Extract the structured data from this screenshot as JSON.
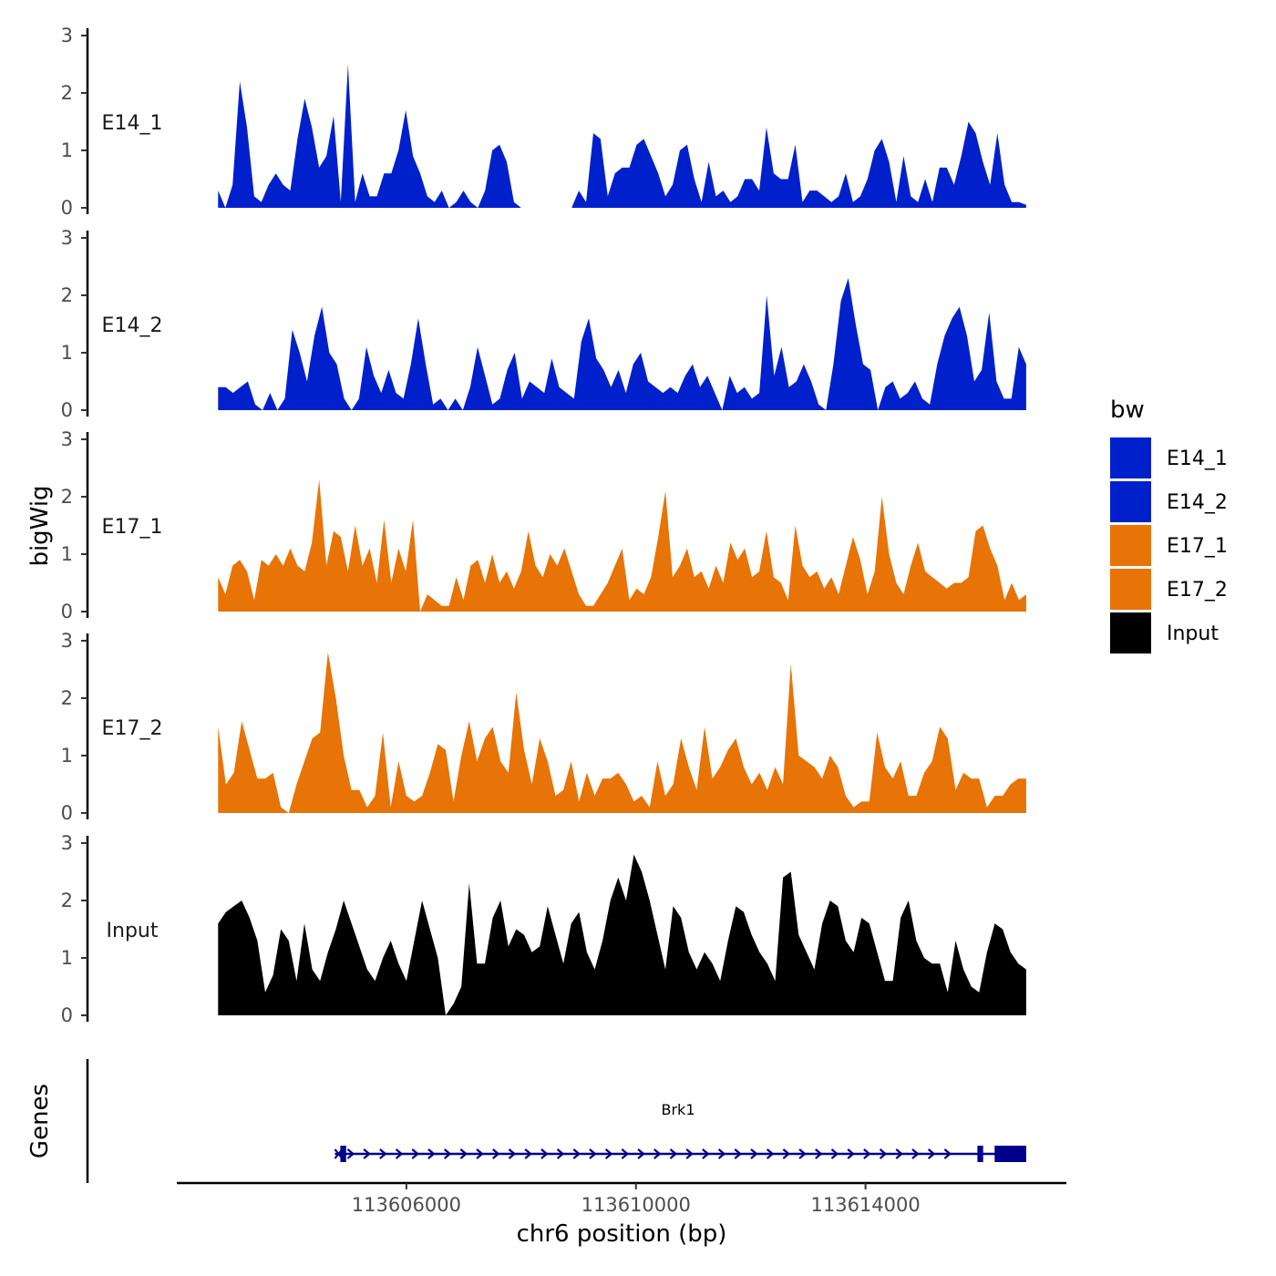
{
  "chart_data": {
    "type": "area",
    "y_axis_title": "bigWig",
    "genes_axis_title": "Genes",
    "x_axis_title": "chr6 position (bp)",
    "x_ticks": [
      "113606000",
      "113610000",
      "113614000"
    ],
    "x_tick_values": [
      113606000,
      113610000,
      113614000
    ],
    "xlim": [
      113602000,
      113617500
    ],
    "data_range": [
      113602720,
      113616800
    ],
    "ylim": [
      0,
      3
    ],
    "y_ticks": [
      "0",
      "1",
      "2",
      "3"
    ],
    "legend": {
      "title": "bw",
      "entries": [
        {
          "label": "E14_1",
          "color": "#0020CC"
        },
        {
          "label": "E14_2",
          "color": "#0020CC"
        },
        {
          "label": "E17_1",
          "color": "#E87306"
        },
        {
          "label": "E17_2",
          "color": "#E87306"
        },
        {
          "label": "Input",
          "color": "#000000"
        }
      ]
    },
    "series": [
      {
        "name": "E14_1",
        "color": "#0020CC",
        "values": [
          0.3,
          0,
          0.4,
          2.2,
          1.4,
          0.2,
          0.1,
          0.4,
          0.6,
          0.4,
          0.3,
          1.2,
          1.9,
          1.4,
          0.7,
          0.9,
          1.6,
          0.1,
          2.5,
          0.1,
          0.6,
          0.2,
          0.2,
          0.6,
          0.6,
          1.0,
          1.7,
          0.9,
          0.6,
          0.2,
          0.1,
          0.3,
          0,
          0.1,
          0.3,
          0.1,
          0,
          0.3,
          1.0,
          1.1,
          0.8,
          0.1,
          0,
          0,
          0,
          0,
          0,
          0,
          0,
          0,
          0.3,
          0.1,
          1.3,
          1.2,
          0.2,
          0.6,
          0.7,
          0.7,
          1.1,
          1.2,
          0.9,
          0.6,
          0.2,
          0.4,
          1.0,
          1.1,
          0.5,
          0.1,
          0.8,
          0.2,
          0.3,
          0.1,
          0.2,
          0.5,
          0.5,
          0.3,
          1.4,
          0.6,
          0.5,
          0.5,
          1.1,
          0.1,
          0.3,
          0.3,
          0.2,
          0.1,
          0.2,
          0.6,
          0.1,
          0.2,
          0.5,
          1.0,
          1.2,
          0.8,
          0.1,
          0.9,
          0.2,
          0.1,
          0.5,
          0.1,
          0.7,
          0.7,
          0.4,
          0.9,
          1.5,
          1.3,
          0.8,
          0.4,
          1.3,
          0.4,
          0.1,
          0.1,
          0.05
        ]
      },
      {
        "name": "E14_2",
        "color": "#0020CC",
        "values": [
          0.4,
          0.4,
          0.3,
          0.4,
          0.5,
          0.1,
          0,
          0.3,
          0,
          0.2,
          1.4,
          1.0,
          0.5,
          1.3,
          1.8,
          1.0,
          0.8,
          0.2,
          0,
          0.2,
          1.1,
          0.6,
          0.3,
          0.7,
          0.3,
          0.2,
          0.8,
          1.6,
          0.8,
          0.1,
          0.2,
          0,
          0.2,
          0,
          0.4,
          1.1,
          0.6,
          0.1,
          0.2,
          0.7,
          1.0,
          0.2,
          0.5,
          0.4,
          0.3,
          0.9,
          0.4,
          0.3,
          0.2,
          1.2,
          1.6,
          0.9,
          0.7,
          0.4,
          0.7,
          0.3,
          0.8,
          1.0,
          0.5,
          0.4,
          0.3,
          0.4,
          0.3,
          0.6,
          0.8,
          0.4,
          0.6,
          0.3,
          0,
          0.6,
          0.3,
          0.4,
          0.2,
          0.3,
          2.0,
          0.6,
          1.1,
          0.4,
          0.5,
          0.8,
          0.5,
          0.1,
          0,
          0.8,
          1.9,
          2.3,
          1.5,
          0.8,
          0.7,
          0,
          0.4,
          0.5,
          0.2,
          0.3,
          0.5,
          0.2,
          0.1,
          0.8,
          1.3,
          1.6,
          1.8,
          1.3,
          0.5,
          0.7,
          1.7,
          0.5,
          0.2,
          0.2,
          1.1,
          0.8
        ]
      },
      {
        "name": "E17_1",
        "color": "#E87306",
        "values": [
          0.6,
          0.3,
          0.8,
          0.9,
          0.7,
          0.2,
          0.9,
          0.8,
          1.0,
          0.8,
          1.1,
          0.8,
          0.7,
          1.2,
          2.3,
          0.8,
          1.4,
          1.3,
          0.7,
          1.5,
          0.8,
          1.1,
          0.5,
          1.6,
          0.5,
          1.1,
          0.7,
          1.6,
          0,
          0.3,
          0.2,
          0.1,
          0.1,
          0.6,
          0.2,
          0.8,
          0.9,
          0.5,
          1.0,
          0.5,
          0.7,
          0.4,
          0.7,
          1.4,
          0.8,
          0.6,
          1.0,
          0.8,
          1.1,
          0.7,
          0.3,
          0.1,
          0.1,
          0.3,
          0.5,
          0.8,
          1.1,
          0.2,
          0.4,
          0.3,
          0.6,
          1.3,
          2.1,
          0.6,
          0.8,
          1.1,
          0.6,
          0.7,
          0.4,
          0.8,
          0.5,
          1.2,
          0.9,
          1.1,
          0.6,
          0.7,
          1.4,
          0.6,
          0.5,
          0.2,
          1.5,
          0.8,
          0.6,
          0.7,
          0.4,
          0.6,
          0.3,
          0.8,
          1.3,
          0.9,
          0.3,
          0.7,
          2.0,
          1.0,
          0.5,
          0.3,
          0.8,
          1.2,
          0.7,
          0.6,
          0.5,
          0.4,
          0.5,
          0.5,
          0.6,
          1.4,
          1.5,
          1.1,
          0.8,
          0.2,
          0.5,
          0.2,
          0.3
        ]
      },
      {
        "name": "E17_2",
        "color": "#E87306",
        "values": [
          1.5,
          0.5,
          0.7,
          1.6,
          1.1,
          0.6,
          0.6,
          0.7,
          0.1,
          0,
          0.5,
          0.9,
          1.3,
          1.4,
          2.8,
          2.0,
          1.0,
          0.4,
          0.4,
          0.1,
          0.3,
          1.4,
          0.1,
          0.9,
          0.3,
          0.2,
          0.3,
          0.7,
          1.2,
          1.1,
          0.2,
          1.0,
          1.6,
          0.9,
          1.3,
          1.5,
          0.9,
          0.7,
          2.1,
          1.1,
          0.5,
          1.3,
          0.9,
          0.3,
          0.4,
          0.9,
          0.2,
          0.7,
          0.3,
          0.6,
          0.6,
          0.7,
          0.5,
          0.2,
          0.3,
          0.1,
          0.9,
          0.3,
          0.5,
          1.3,
          0.8,
          0.4,
          1.5,
          0.6,
          0.8,
          1.1,
          1.3,
          0.8,
          0.5,
          0.7,
          0.4,
          0.8,
          0.5,
          2.6,
          1.0,
          0.9,
          0.8,
          0.6,
          1.0,
          0.8,
          0.3,
          0.1,
          0.2,
          0.2,
          1.4,
          0.8,
          0.6,
          0.9,
          0.3,
          0.3,
          0.7,
          0.9,
          1.5,
          1.3,
          0.4,
          0.7,
          0.6,
          0.6,
          0.1,
          0.3,
          0.3,
          0.5,
          0.6,
          0.6
        ]
      },
      {
        "name": "Input",
        "color": "#000000",
        "values": [
          1.6,
          1.8,
          1.9,
          2.0,
          1.7,
          1.3,
          0.4,
          0.7,
          1.5,
          1.3,
          0.6,
          1.6,
          0.8,
          0.6,
          1.1,
          1.5,
          2.0,
          1.6,
          1.2,
          0.8,
          0.6,
          1.0,
          1.3,
          0.9,
          0.6,
          1.3,
          2.0,
          1.5,
          1.0,
          0,
          0.2,
          0.5,
          2.3,
          0.9,
          0.9,
          1.7,
          2.0,
          1.2,
          1.5,
          1.4,
          1.1,
          1.2,
          1.9,
          1.4,
          0.9,
          1.6,
          1.8,
          1.1,
          0.8,
          1.3,
          2.0,
          2.4,
          2.0,
          2.8,
          2.5,
          2.0,
          1.4,
          0.8,
          1.9,
          1.7,
          1.1,
          0.8,
          1.1,
          0.9,
          0.6,
          1.3,
          1.9,
          1.8,
          1.4,
          1.1,
          0.9,
          0.6,
          2.4,
          2.5,
          1.4,
          1.1,
          0.8,
          1.6,
          2.0,
          1.9,
          1.3,
          1.1,
          1.7,
          1.6,
          1.1,
          0.6,
          0.6,
          1.7,
          2.0,
          1.3,
          1.0,
          0.9,
          0.9,
          0.4,
          1.3,
          0.8,
          0.5,
          0.4,
          1.1,
          1.6,
          1.5,
          1.1,
          0.9,
          0.8
        ]
      }
    ],
    "genes": [
      {
        "name": "Brk1",
        "strand": "+",
        "start": 113604850,
        "end": 113616800,
        "exons": [
          [
            113604850,
            113604950
          ],
          [
            113615950,
            113616050
          ],
          [
            113616250,
            113616800
          ]
        ]
      }
    ]
  }
}
